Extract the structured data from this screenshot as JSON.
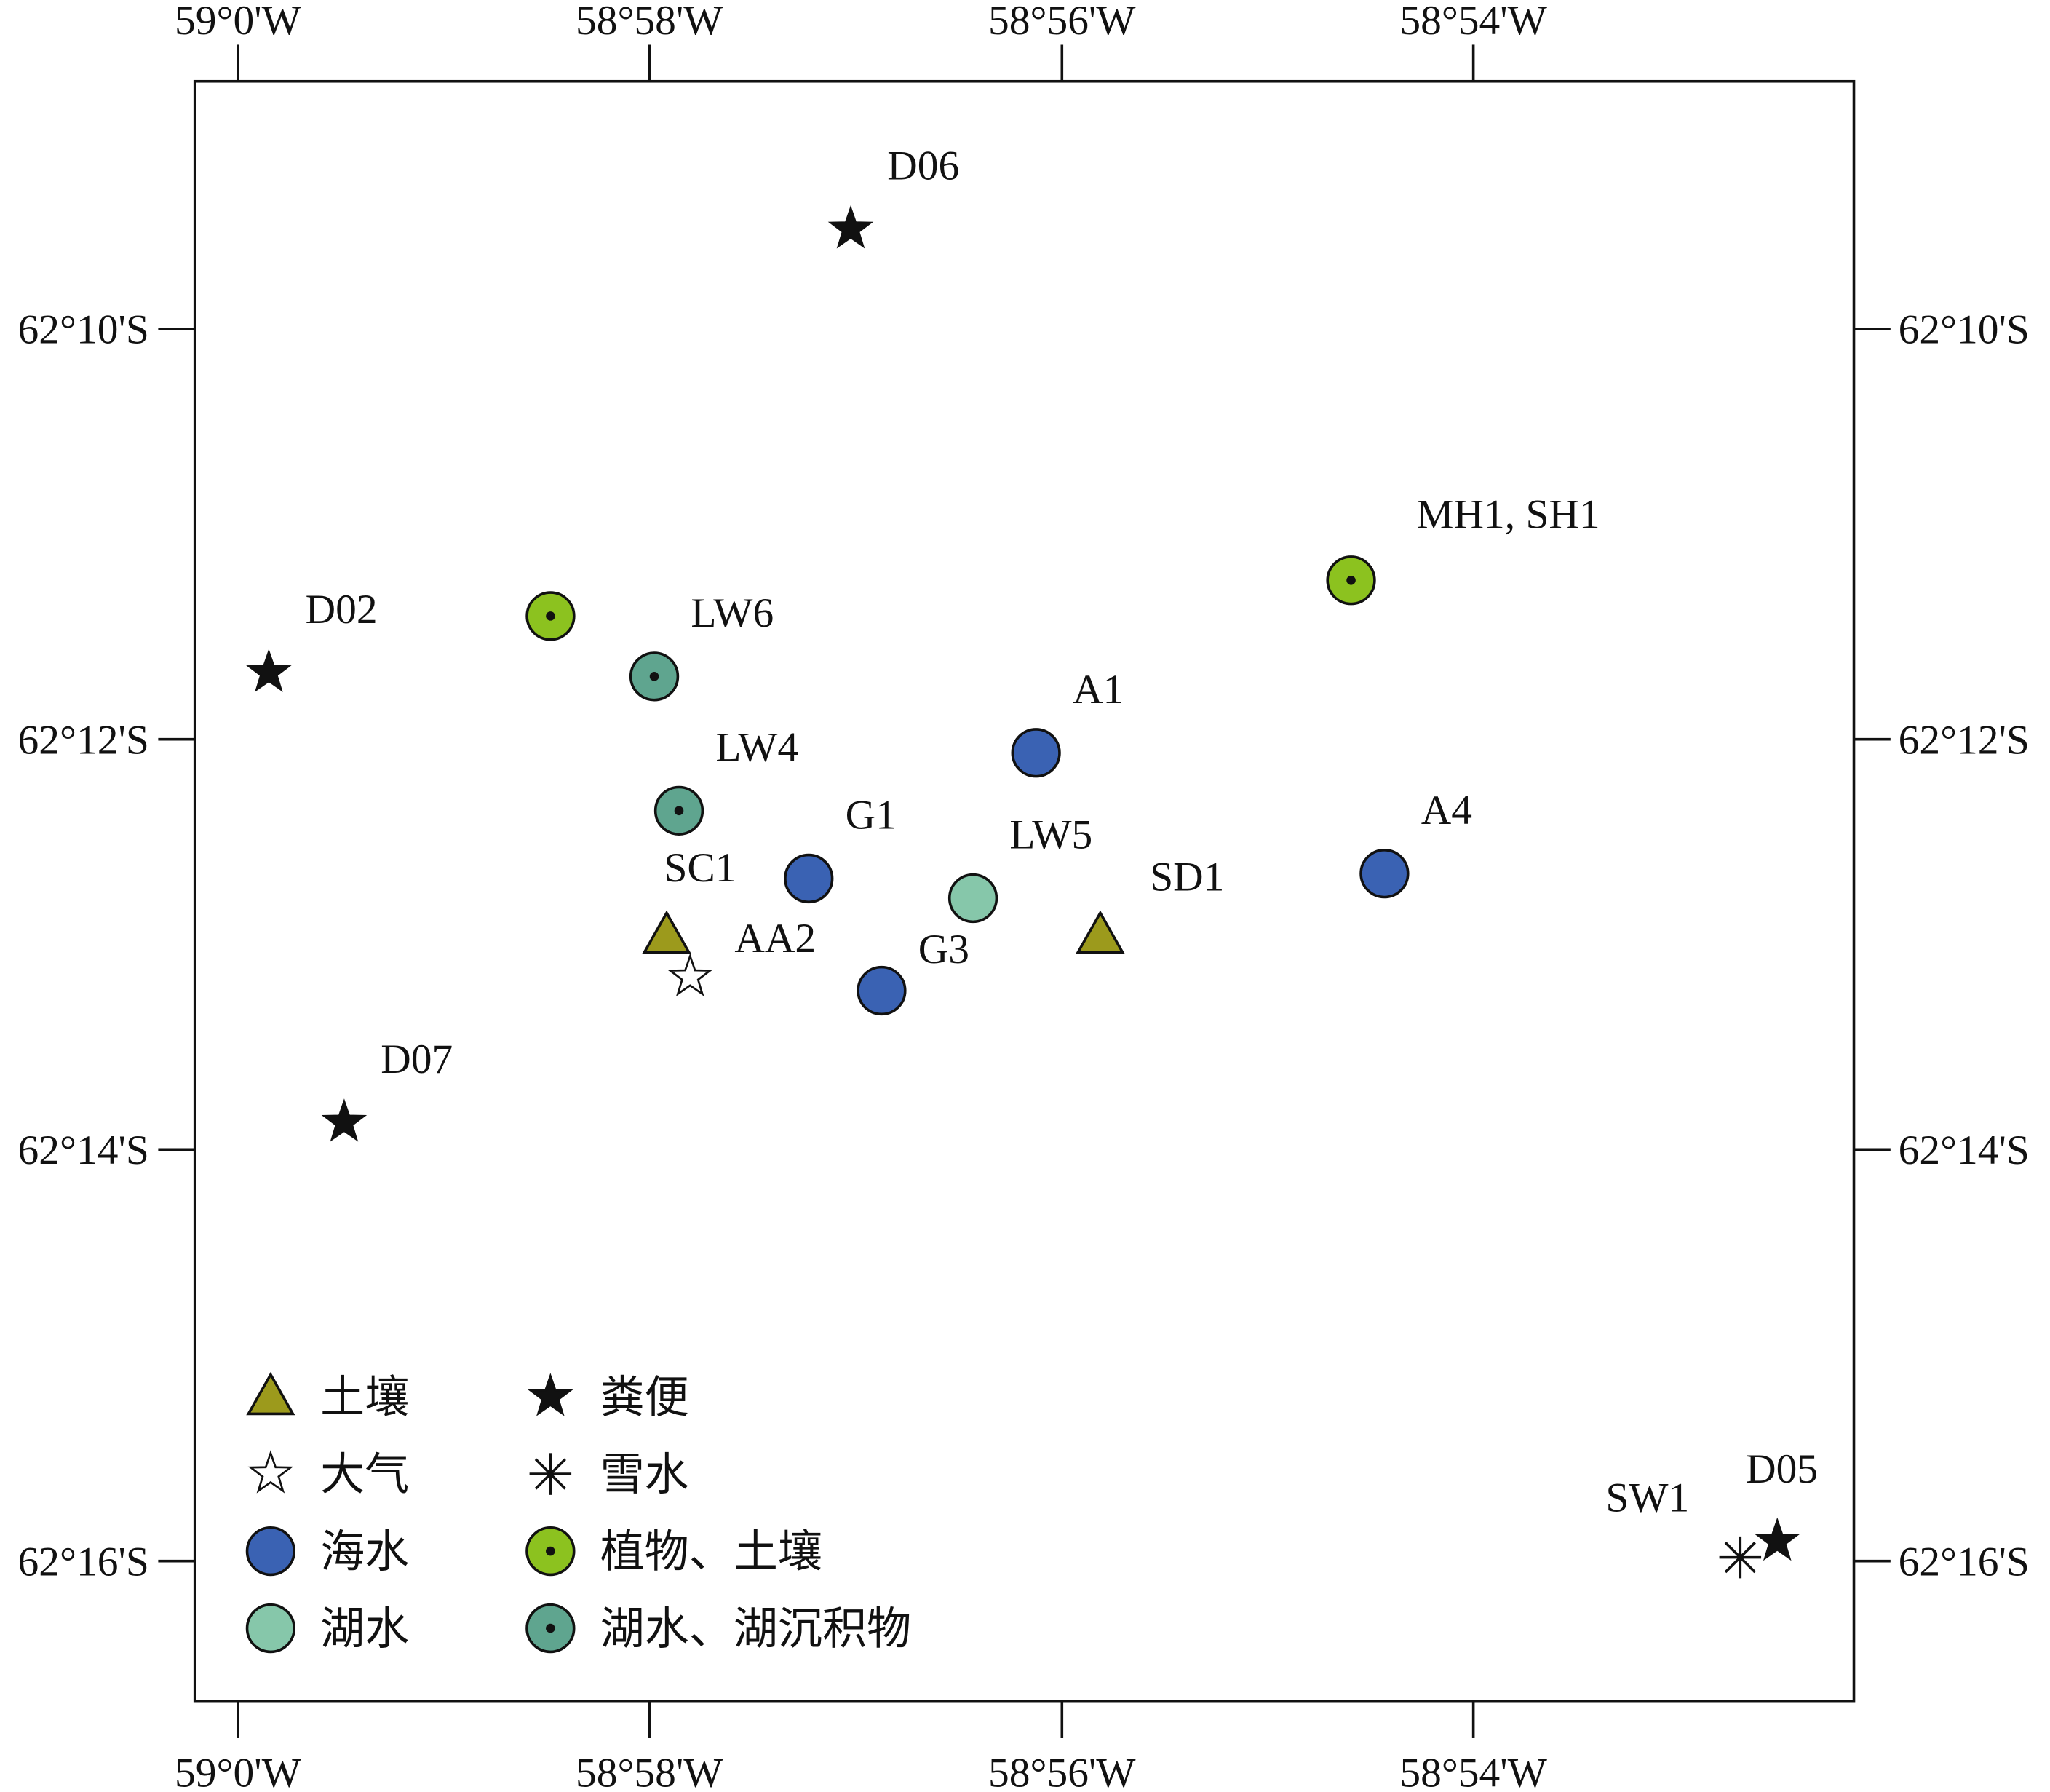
{
  "chart_data": {
    "type": "scatter",
    "xlim": [
      -59.00349,
      -58.8692
    ],
    "ylim": [
      -62.2781,
      -62.1466
    ],
    "xticks": [
      {
        "value": -59,
        "label": "59°0'W"
      },
      {
        "value": -58.9667,
        "label": "58°58'W"
      },
      {
        "value": -58.9333,
        "label": "58°56'W"
      },
      {
        "value": -58.9,
        "label": "58°54'W"
      }
    ],
    "yticks": [
      {
        "value": -62.1667,
        "label": "62°10'S"
      },
      {
        "value": -62.2,
        "label": "62°12'S"
      },
      {
        "value": -62.2333,
        "label": "62°14'S"
      },
      {
        "value": -62.2667,
        "label": "62°16'S"
      }
    ],
    "series": [
      {
        "name": "土壤",
        "marker": "triangle",
        "color": "#9c9a1c",
        "x": [
          -58.9653,
          -58.9302
        ],
        "y": [
          -62.2159,
          -62.2159
        ],
        "labels": [
          "SC1",
          "SD1"
        ]
      },
      {
        "name": "大气",
        "marker": "star",
        "color": "#ffffff",
        "x": [
          -58.9634
        ],
        "y": [
          -62.2193
        ],
        "labels": [
          "AA2"
        ]
      },
      {
        "name": "海水",
        "marker": "circle",
        "color": "#3a62b3",
        "x": [
          -58.9354,
          -58.9538,
          -58.9479,
          -58.9072
        ],
        "y": [
          -62.2011,
          -62.2113,
          -62.2204,
          -62.2109
        ],
        "labels": [
          "A1",
          "G1",
          "G3",
          "A4"
        ]
      },
      {
        "name": "湖水",
        "marker": "circle",
        "color": "#86c7aa",
        "x": [
          -58.9405
        ],
        "y": [
          -62.2129
        ],
        "labels": [
          "LW5"
        ]
      },
      {
        "name": "粪便",
        "marker": "star",
        "color": "#111111",
        "x": [
          -58.9504,
          -58.9975,
          -58.9914,
          -58.8754
        ],
        "y": [
          -62.1586,
          -62.1946,
          -62.2311,
          -62.2651
        ],
        "labels": [
          "D06",
          "D02",
          "D07",
          "D05"
        ]
      },
      {
        "name": "雪水",
        "marker": "asterisk",
        "color": "#111111",
        "x": [
          -58.8784
        ],
        "y": [
          -62.2664
        ],
        "labels": [
          "SW1"
        ]
      },
      {
        "name": "植物、土壤",
        "marker": "dot-circle",
        "color": "#8cc21f",
        "x": [
          -58.9747,
          -58.9099
        ],
        "y": [
          -62.19,
          -62.1871
        ],
        "labels": [
          null,
          "MH1, SH1"
        ]
      },
      {
        "name": "湖水、湖沉积物",
        "marker": "dot-circle",
        "color": "#5fa58f",
        "x": [
          -58.9663,
          -58.9643
        ],
        "y": [
          -62.1949,
          -62.2058
        ],
        "labels": [
          "LW6",
          "LW4"
        ]
      }
    ]
  }
}
